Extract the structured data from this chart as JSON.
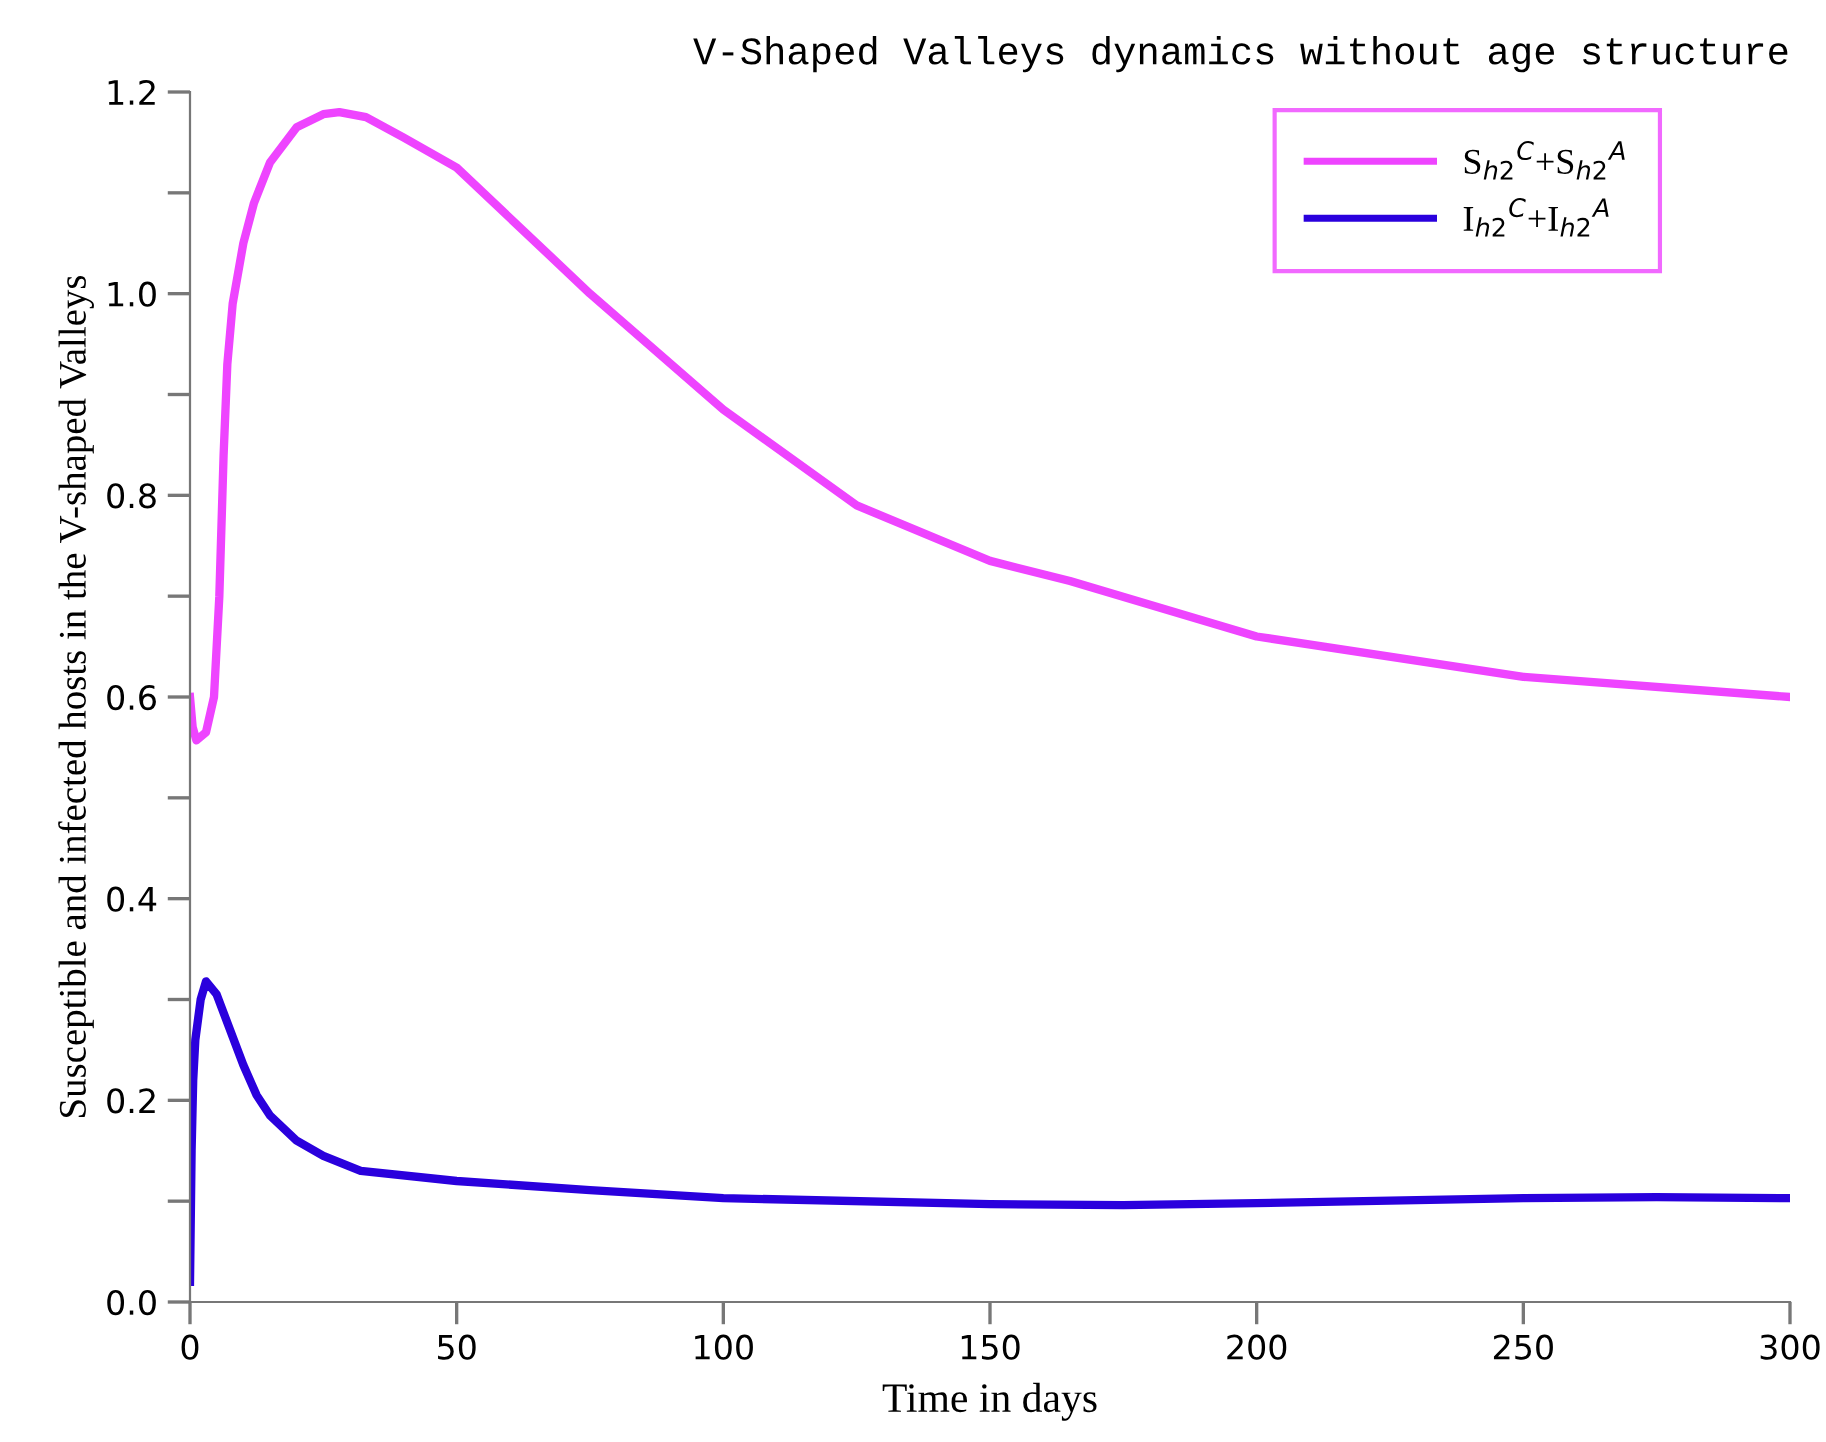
{
  "chart_data": {
    "type": "line",
    "title": "V-Shaped Valleys dynamics without age structure",
    "xlabel": "Time in days",
    "ylabel": "Susceptible and infected hosts in the V-shaped Valleys",
    "xlim": [
      0,
      300
    ],
    "xticks": [
      0,
      50,
      100,
      150,
      200,
      250,
      300
    ],
    "ylim": [
      0,
      1.2
    ],
    "yticks": [
      {
        "value": 0,
        "label": "0.0"
      },
      {
        "value": 0.1,
        "label": null
      },
      0.2,
      {
        "value": 0.3,
        "label": null
      },
      0.4,
      {
        "value": 0.5,
        "label": null
      },
      0.6,
      {
        "value": 0.7,
        "label": null
      },
      0.8,
      {
        "value": 0.9,
        "label": null
      },
      {
        "value": 1,
        "label": "1.0"
      },
      {
        "value": 1.1,
        "label": null
      },
      1.2
    ],
    "grid": false,
    "legend": "top right",
    "marker": "none",
    "line_style": "solid",
    "series": [
      {
        "name": "S$_{h2}$$^{C}$+S$_{h2}$$^{A}$",
        "color": "#ee44ff",
        "x": [
          0,
          0.5,
          1.2,
          3,
          4.5,
          5.5,
          6.3,
          7,
          8,
          10,
          12,
          15,
          20,
          25,
          28,
          33,
          40,
          50,
          75,
          100,
          125,
          150,
          165,
          200,
          250,
          300
        ],
        "values": [
          0.6,
          0.57,
          0.557,
          0.565,
          0.6,
          0.7,
          0.84,
          0.93,
          0.99,
          1.05,
          1.09,
          1.13,
          1.165,
          1.178,
          1.18,
          1.175,
          1.155,
          1.125,
          1.0,
          0.885,
          0.79,
          0.735,
          0.715,
          0.66,
          0.62,
          0.6
        ]
      },
      {
        "name": "I$_{h2}$$^{C}$+I$_{h2}$$^{A}$",
        "color": "#2a00dd",
        "x": [
          0,
          0.3,
          0.6,
          1,
          2,
          3,
          5,
          7.5,
          10,
          12.5,
          15,
          20,
          25,
          32,
          50,
          75,
          100,
          150,
          175,
          200,
          250,
          275,
          300
        ],
        "values": [
          0.02,
          0.15,
          0.22,
          0.26,
          0.3,
          0.318,
          0.305,
          0.27,
          0.235,
          0.205,
          0.185,
          0.16,
          0.145,
          0.13,
          0.12,
          0.111,
          0.103,
          0.097,
          0.096,
          0.098,
          0.103,
          0.104,
          0.103
        ]
      }
    ]
  }
}
